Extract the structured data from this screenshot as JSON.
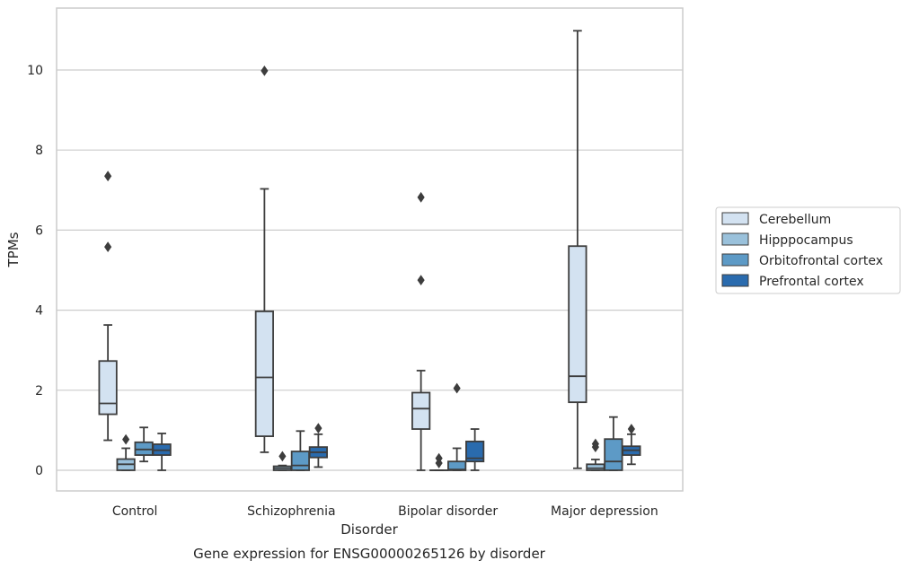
{
  "chart_data": {
    "type": "boxplot",
    "title": "Gene expression for ENSG00000265126 by disorder",
    "xlabel": "Disorder",
    "ylabel": "TPMs",
    "ylim": [
      -0.5,
      11.5
    ],
    "yticks": [
      0,
      2,
      4,
      6,
      8,
      10
    ],
    "grid": true,
    "legend_position": "right",
    "categories": [
      "Control",
      "Schizophrenia",
      "Bipolar disorder",
      "Major depression"
    ],
    "series": [
      {
        "name": "Cerebellum",
        "color": "#d3e2f1",
        "boxes": [
          {
            "whislo": 0.75,
            "q1": 1.4,
            "med": 1.67,
            "q3": 2.73,
            "whishi": 3.63,
            "fliers": [
              5.58,
              7.35
            ]
          },
          {
            "whislo": 0.45,
            "q1": 0.85,
            "med": 2.32,
            "q3": 3.97,
            "whishi": 7.03,
            "fliers": [
              9.98
            ]
          },
          {
            "whislo": 0.0,
            "q1": 1.03,
            "med": 1.54,
            "q3": 1.94,
            "whishi": 2.49,
            "fliers": [
              4.75,
              6.82
            ]
          },
          {
            "whislo": 0.05,
            "q1": 1.7,
            "med": 2.35,
            "q3": 5.6,
            "whishi": 10.98,
            "fliers": []
          }
        ]
      },
      {
        "name": "Hipppocampus",
        "color": "#9ac1db",
        "boxes": [
          {
            "whislo": 0.0,
            "q1": 0.0,
            "med": 0.15,
            "q3": 0.28,
            "whishi": 0.55,
            "fliers": [
              0.77
            ]
          },
          {
            "whislo": 0.0,
            "q1": 0.0,
            "med": 0.05,
            "q3": 0.1,
            "whishi": 0.12,
            "fliers": [
              0.35
            ]
          },
          {
            "whislo": 0.0,
            "q1": 0.0,
            "med": 0.0,
            "q3": 0.0,
            "whishi": 0.0,
            "fliers": [
              0.18,
              0.3
            ]
          },
          {
            "whislo": 0.0,
            "q1": 0.0,
            "med": 0.05,
            "q3": 0.15,
            "whishi": 0.27,
            "fliers": [
              0.58,
              0.66
            ]
          }
        ]
      },
      {
        "name": "Orbitofrontal cortex",
        "color": "#5d9ac6",
        "boxes": [
          {
            "whislo": 0.22,
            "q1": 0.38,
            "med": 0.52,
            "q3": 0.7,
            "whishi": 1.07,
            "fliers": []
          },
          {
            "whislo": 0.0,
            "q1": 0.0,
            "med": 0.12,
            "q3": 0.47,
            "whishi": 0.98,
            "fliers": []
          },
          {
            "whislo": 0.0,
            "q1": 0.0,
            "med": 0.02,
            "q3": 0.22,
            "whishi": 0.55,
            "fliers": [
              2.05
            ]
          },
          {
            "whislo": 0.0,
            "q1": 0.0,
            "med": 0.22,
            "q3": 0.78,
            "whishi": 1.33,
            "fliers": []
          }
        ]
      },
      {
        "name": "Prefrontal cortex",
        "color": "#2a6bae",
        "boxes": [
          {
            "whislo": 0.0,
            "q1": 0.38,
            "med": 0.5,
            "q3": 0.65,
            "whishi": 0.92,
            "fliers": []
          },
          {
            "whislo": 0.08,
            "q1": 0.32,
            "med": 0.45,
            "q3": 0.58,
            "whishi": 0.9,
            "fliers": [
              1.05
            ]
          },
          {
            "whislo": 0.0,
            "q1": 0.22,
            "med": 0.3,
            "q3": 0.72,
            "whishi": 1.03,
            "fliers": []
          },
          {
            "whislo": 0.15,
            "q1": 0.38,
            "med": 0.5,
            "q3": 0.6,
            "whishi": 0.9,
            "fliers": [
              1.03
            ]
          }
        ]
      }
    ]
  }
}
